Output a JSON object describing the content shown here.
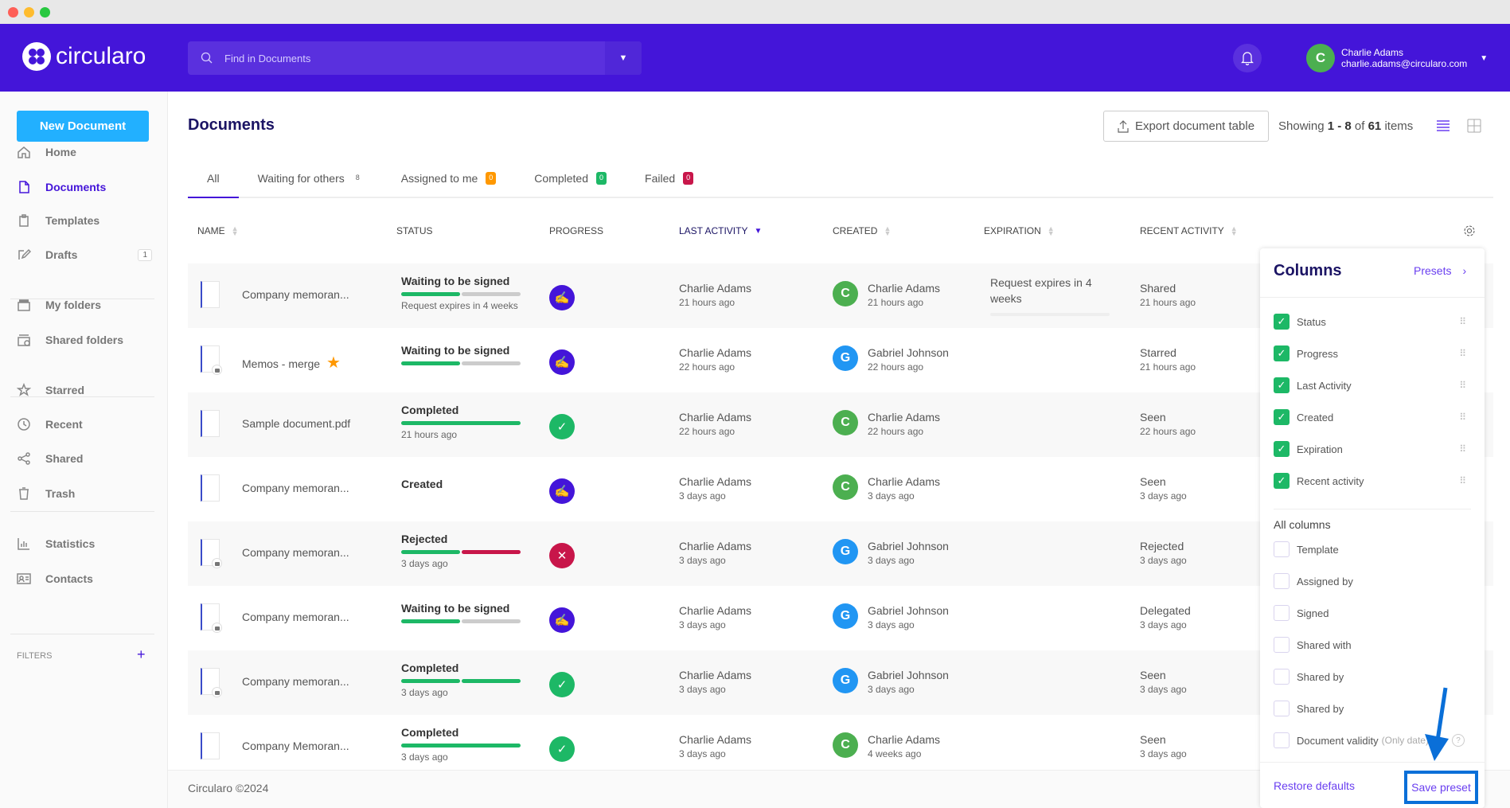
{
  "app": {
    "brand": "circularo",
    "search_placeholder": "Find in Documents",
    "user_initial": "C",
    "user_name": "Charlie Adams",
    "user_email": "charlie.adams@circularo.com"
  },
  "colors": {
    "brand": "#4415d9",
    "accent": "#22b0ff",
    "green": "#1db866",
    "red": "#c8164a",
    "orange": "#ff9800"
  },
  "sidebar": {
    "new_document": "New Document",
    "items": [
      {
        "label": "Home",
        "icon": "home-icon"
      },
      {
        "label": "Documents",
        "icon": "document-icon",
        "active": true
      },
      {
        "label": "Templates",
        "icon": "template-icon"
      },
      {
        "label": "Drafts",
        "icon": "pencil-icon",
        "badge": "1"
      },
      {
        "label": "My folders",
        "icon": "folder-icon"
      },
      {
        "label": "Shared folders",
        "icon": "shared-folder-icon"
      },
      {
        "label": "Starred",
        "icon": "star-icon"
      },
      {
        "label": "Recent",
        "icon": "clock-icon"
      },
      {
        "label": "Shared",
        "icon": "share-icon"
      },
      {
        "label": "Trash",
        "icon": "trash-icon"
      },
      {
        "label": "Statistics",
        "icon": "chart-icon"
      },
      {
        "label": "Contacts",
        "icon": "contacts-icon"
      }
    ],
    "filters_label": "FILTERS",
    "filters_add": "+"
  },
  "main": {
    "title": "Documents",
    "export_label": "Export document table",
    "showing_prefix": "Showing ",
    "showing_range": "1 - 8",
    "showing_of": " of ",
    "showing_total": "61",
    "showing_suffix": " items",
    "tabs": [
      {
        "label": "All",
        "active": true
      },
      {
        "label": "Waiting for others",
        "count": "8",
        "badge_color": ""
      },
      {
        "label": "Assigned to me",
        "count": "0",
        "badge_color": "#ff9800"
      },
      {
        "label": "Completed",
        "count": "0",
        "badge_color": "#1db866"
      },
      {
        "label": "Failed",
        "count": "0",
        "badge_color": "#c8164a"
      }
    ],
    "columns": [
      "Name",
      "Status",
      "Progress",
      "Last activity",
      "Created",
      "Expiration",
      "Recent activity"
    ],
    "rows": [
      {
        "name": "Company memoran...",
        "locked": false,
        "starred": false,
        "status": "Waiting to be signed",
        "bar": [
          "g",
          "x"
        ],
        "status_sub": "Request expires in 4 weeks",
        "progress": "sign",
        "last_name": "Charlie Adams",
        "last_time": "21 hours ago",
        "created_initial": "C",
        "created_color": "#4caf50",
        "created_name": "Charlie Adams",
        "created_time": "21 hours ago",
        "expiration": "Request expires in 4 weeks",
        "recent": "Shared",
        "recent_time": "21 hours ago"
      },
      {
        "name": "Memos - merge",
        "locked": true,
        "starred": true,
        "status": "Waiting to be signed",
        "bar": [
          "g",
          "x"
        ],
        "status_sub": "",
        "progress": "sign",
        "last_name": "Charlie Adams",
        "last_time": "22 hours ago",
        "created_initial": "G",
        "created_color": "#2196f3",
        "created_name": "Gabriel Johnson",
        "created_time": "22 hours ago",
        "expiration": "",
        "recent": "Starred",
        "recent_time": "21 hours ago"
      },
      {
        "name": "Sample document.pdf",
        "locked": false,
        "starred": false,
        "status": "Completed",
        "bar": [
          "g"
        ],
        "status_sub": "21 hours ago",
        "progress": "check",
        "last_name": "Charlie Adams",
        "last_time": "22 hours ago",
        "created_initial": "C",
        "created_color": "#4caf50",
        "created_name": "Charlie Adams",
        "created_time": "22 hours ago",
        "expiration": "",
        "recent": "Seen",
        "recent_time": "22 hours ago"
      },
      {
        "name": "Company memoran...",
        "locked": false,
        "starred": false,
        "status": "Created",
        "bar": [],
        "status_sub": "",
        "progress": "sign",
        "last_name": "Charlie Adams",
        "last_time": "3 days ago",
        "created_initial": "C",
        "created_color": "#4caf50",
        "created_name": "Charlie Adams",
        "created_time": "3 days ago",
        "expiration": "",
        "recent": "Seen",
        "recent_time": "3 days ago"
      },
      {
        "name": "Company memoran...",
        "locked": true,
        "starred": false,
        "status": "Rejected",
        "bar": [
          "g",
          "r"
        ],
        "status_sub": "3 days ago",
        "progress": "cross",
        "last_name": "Charlie Adams",
        "last_time": "3 days ago",
        "created_initial": "G",
        "created_color": "#2196f3",
        "created_name": "Gabriel Johnson",
        "created_time": "3 days ago",
        "expiration": "",
        "recent": "Rejected",
        "recent_time": "3 days ago"
      },
      {
        "name": "Company memoran...",
        "locked": true,
        "starred": false,
        "status": "Waiting to be signed",
        "bar": [
          "g",
          "x"
        ],
        "status_sub": "",
        "progress": "sign",
        "last_name": "Charlie Adams",
        "last_time": "3 days ago",
        "created_initial": "G",
        "created_color": "#2196f3",
        "created_name": "Gabriel Johnson",
        "created_time": "3 days ago",
        "expiration": "",
        "recent": "Delegated",
        "recent_time": "3 days ago"
      },
      {
        "name": "Company memoran...",
        "locked": true,
        "starred": false,
        "status": "Completed",
        "bar": [
          "g",
          "g"
        ],
        "status_sub": "3 days ago",
        "progress": "check",
        "last_name": "Charlie Adams",
        "last_time": "3 days ago",
        "created_initial": "G",
        "created_color": "#2196f3",
        "created_name": "Gabriel Johnson",
        "created_time": "3 days ago",
        "expiration": "",
        "recent": "Seen",
        "recent_time": "3 days ago"
      },
      {
        "name": "Company Memoran...",
        "locked": false,
        "starred": false,
        "status": "Completed",
        "bar": [
          "g"
        ],
        "status_sub": "3 days ago",
        "progress": "check",
        "last_name": "Charlie Adams",
        "last_time": "3 days ago",
        "created_initial": "C",
        "created_color": "#4caf50",
        "created_name": "Charlie Adams",
        "created_time": "4 weeks ago",
        "expiration": "",
        "recent": "Seen",
        "recent_time": "3 days ago"
      }
    ]
  },
  "panel": {
    "title": "Columns",
    "presets": "Presets",
    "selected": [
      "Status",
      "Progress",
      "Last Activity",
      "Created",
      "Expiration",
      "Recent activity"
    ],
    "all_label": "All columns",
    "all": [
      "Template",
      "Assigned by",
      "Signed",
      "Shared with",
      "Shared by",
      "Shared by",
      "Document validity"
    ],
    "validity_note": "(Only date)",
    "restore": "Restore defaults",
    "save": "Save preset"
  },
  "footer": {
    "copyright": "Circularo ©2024"
  }
}
